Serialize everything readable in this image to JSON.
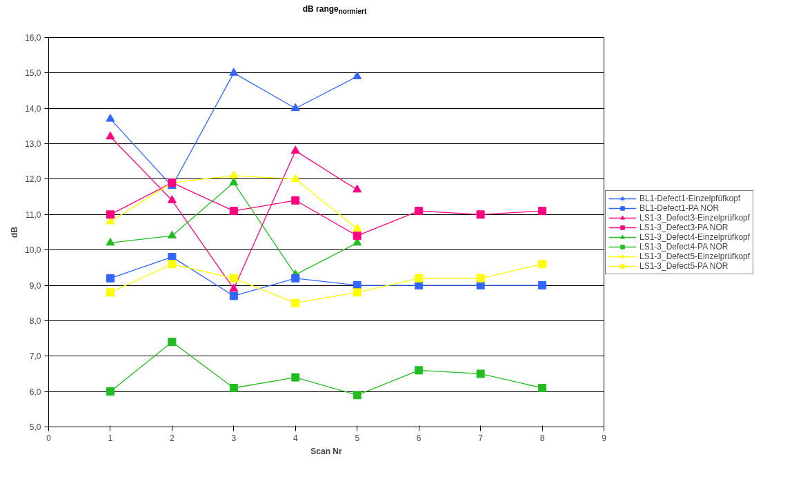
{
  "chart_data": {
    "type": "line",
    "title": "dB range$_{normiert}$",
    "xlabel": "Scan Nr",
    "ylabel": "dB",
    "x": [
      1,
      2,
      3,
      4,
      5,
      6,
      7,
      8
    ],
    "xlim": [
      0,
      9
    ],
    "xticks": [
      0,
      1,
      2,
      3,
      4,
      5,
      6,
      7,
      8,
      9
    ],
    "ylim": [
      5,
      16
    ],
    "yticks": [
      {
        "value": 5,
        "label": "5,0"
      },
      {
        "value": 6,
        "label": "6,0"
      },
      {
        "value": 7,
        "label": "7,0"
      },
      {
        "value": 8,
        "label": "8,0"
      },
      {
        "value": 9,
        "label": "9,0"
      },
      {
        "value": 10,
        "label": "10,0"
      },
      {
        "value": 11,
        "label": "11,0"
      },
      {
        "value": 12,
        "label": "12,0"
      },
      {
        "value": 13,
        "label": "13,0"
      },
      {
        "value": 14,
        "label": "14,0"
      },
      {
        "value": 15,
        "label": "15,0"
      },
      {
        "value": 16,
        "label": "16,0"
      }
    ],
    "grid": "y",
    "legend": "right",
    "line_style": "solid",
    "series": [
      {
        "name": "BL1-Defect1-Einzelpfüfkopf",
        "color": "#3366ff",
        "marker": "triangle",
        "values": [
          13.7,
          11.8,
          15.0,
          14.0,
          14.9,
          null,
          null,
          null
        ]
      },
      {
        "name": "BL1-Defect1-PA NOR",
        "color": "#3366ff",
        "marker": "square",
        "values": [
          9.2,
          9.8,
          8.7,
          9.2,
          9.0,
          9.0,
          9.0,
          9.0
        ]
      },
      {
        "name": "LS1-3_Defect3-Einzelprüfkopf",
        "color": "#ff0080",
        "marker": "triangle",
        "values": [
          13.2,
          11.4,
          8.9,
          12.8,
          11.7,
          null,
          null,
          null
        ]
      },
      {
        "name": "LS1-3_Defect3-PA NOR",
        "color": "#ff0080",
        "marker": "square",
        "values": [
          11.0,
          11.9,
          11.1,
          11.4,
          10.4,
          11.1,
          11.0,
          11.1
        ]
      },
      {
        "name": "LS1-3_Defect4-Einzelprüfkopf",
        "color": "#22bb22",
        "marker": "triangle",
        "values": [
          10.2,
          10.4,
          11.9,
          9.3,
          10.2,
          null,
          null,
          null
        ]
      },
      {
        "name": "LS1-3_Defect4-PA NOR",
        "color": "#22bb22",
        "marker": "square",
        "values": [
          6.0,
          7.4,
          6.1,
          6.4,
          5.9,
          6.6,
          6.5,
          6.1
        ]
      },
      {
        "name": "LS1-3_Defect5-Einzelprüfkopf",
        "color": "#ffff00",
        "marker": "triangle",
        "values": [
          10.8,
          11.9,
          12.1,
          12.0,
          10.6,
          null,
          null,
          null
        ]
      },
      {
        "name": "LS1-3_Defect5-PA NOR",
        "color": "#ffff00",
        "marker": "square",
        "values": [
          8.8,
          9.6,
          9.2,
          8.5,
          8.8,
          9.2,
          9.2,
          9.6
        ]
      }
    ]
  }
}
